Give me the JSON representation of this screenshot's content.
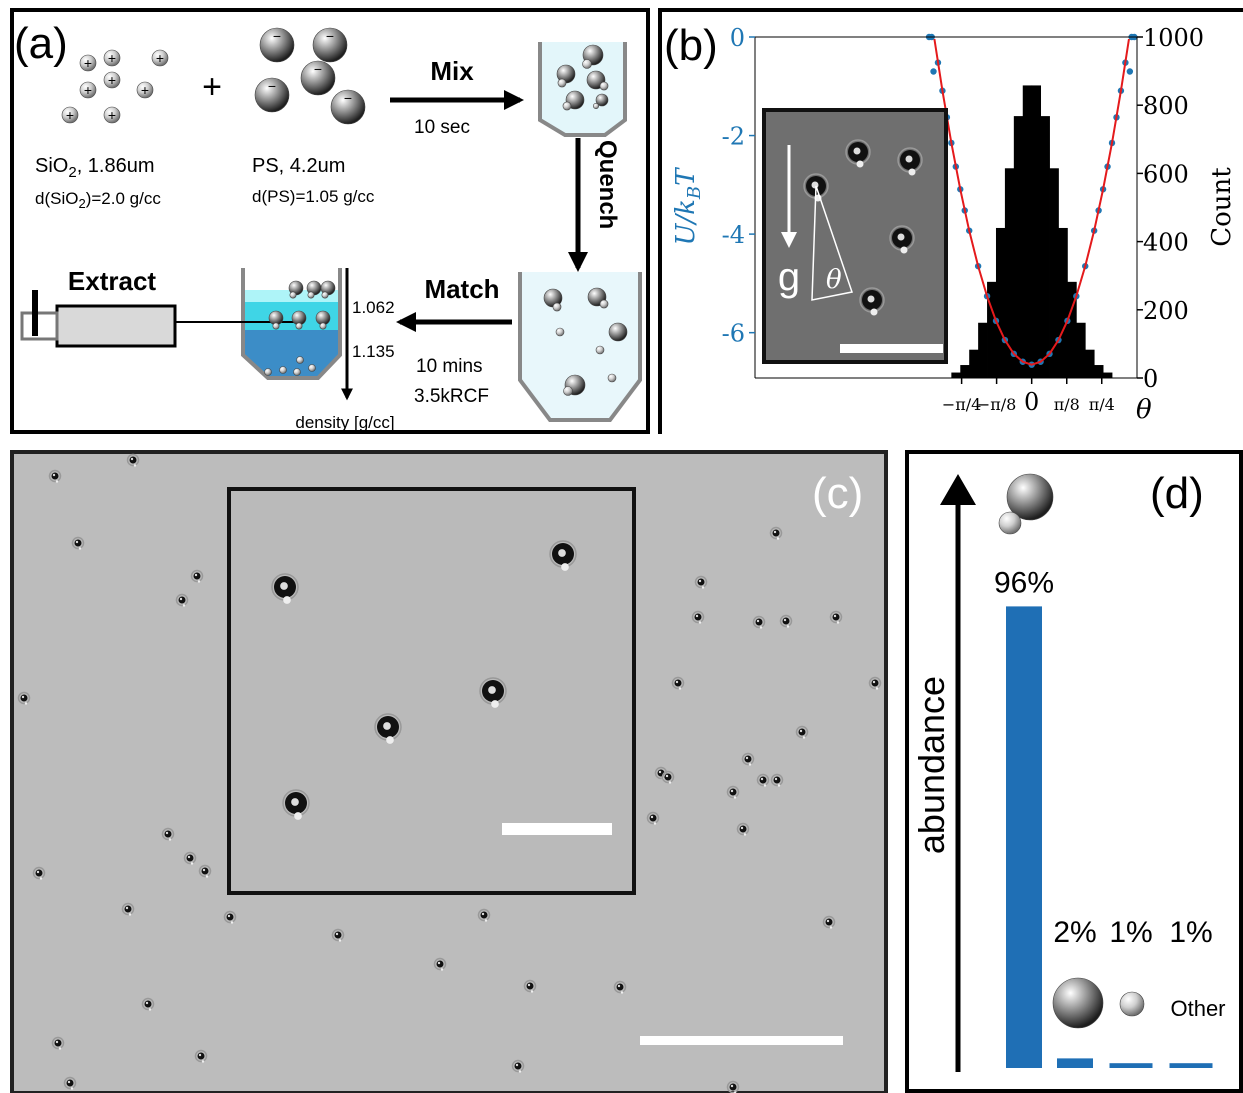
{
  "panel_a": {
    "label": "(a)",
    "plus": "+",
    "ion_plus": "+",
    "ion_minus": "−",
    "sio2_label": [
      "SiO",
      "2",
      ", 1.86um"
    ],
    "sio2_density": [
      "d(SiO",
      "2",
      ")=2.0 g/cc"
    ],
    "ps_label": "PS, 4.2um",
    "ps_density": "d(PS)=1.05 g/cc",
    "mix": "Mix",
    "mix_time": "10 sec",
    "quench": "Quench",
    "match": "Match",
    "match_time": "10 mins",
    "match_speed": "3.5kRCF",
    "extract": "Extract",
    "density_top": "1.062",
    "density_bottom": "1.135",
    "density_axis": "density [g/cc]"
  },
  "panel_b": {
    "label": "(b)",
    "inset_gravity": "g",
    "inset_angle": "θ"
  },
  "panel_c": {
    "label": "(c)"
  },
  "panel_d": {
    "label": "(d)"
  },
  "chart_data": [
    {
      "type": "combo",
      "y_label": [
        "U/k",
        "B",
        "T"
      ],
      "y2_label": "Count",
      "x_label": "θ",
      "xlim": [
        -3.1,
        1.18
      ],
      "ylim": [
        -6.92,
        0
      ],
      "y2lim": [
        0,
        1000
      ],
      "xticks": [
        {
          "value": -0.785,
          "label": "−π/4"
        },
        {
          "value": -0.393,
          "label": "−π/8"
        },
        0,
        {
          "value": 0.393,
          "label": "π/8"
        },
        {
          "value": 0.785,
          "label": "π/4"
        }
      ],
      "yticks": [
        0,
        -2,
        -4,
        -6
      ],
      "y2ticks": [
        0,
        200,
        400,
        600,
        800,
        1000
      ],
      "histogram": {
        "axis": "y2",
        "color": "#000000",
        "bins": [
          -0.9,
          -0.8,
          -0.7,
          -0.6,
          -0.5,
          -0.4,
          -0.3,
          -0.2,
          -0.1,
          0,
          0.1,
          0.2,
          0.3,
          0.4,
          0.5,
          0.6,
          0.7,
          0.8,
          0.9
        ],
        "counts": [
          16,
          38,
          83,
          162,
          282,
          440,
          615,
          768,
          858,
          858,
          768,
          615,
          440,
          282,
          162,
          83,
          38,
          16
        ]
      },
      "series": [
        {
          "style": "points",
          "color": "#1f77b4",
          "x": [
            -1.15,
            -1.12,
            -1.1,
            -1.05,
            -1.0,
            -0.95,
            -0.9,
            -0.85,
            -0.8,
            -0.75,
            -0.7,
            -0.6,
            -0.5,
            -0.4,
            -0.3,
            -0.2,
            -0.1,
            0,
            0.1,
            0.2,
            0.3,
            0.4,
            0.5,
            0.6,
            0.7,
            0.75,
            0.8,
            0.85,
            0.9,
            0.95,
            1.0,
            1.05,
            1.1,
            1.12,
            1.15
          ],
          "values": [
            0,
            0,
            -0.7,
            -0.52,
            -1.09,
            -1.63,
            -2.15,
            -2.63,
            -3.09,
            -3.52,
            -3.93,
            -4.65,
            -5.26,
            -5.76,
            -6.15,
            -6.43,
            -6.59,
            -6.65,
            -6.59,
            -6.43,
            -6.15,
            -5.76,
            -5.26,
            -4.65,
            -3.93,
            -3.52,
            -3.09,
            -2.63,
            -2.15,
            -1.63,
            -1.09,
            -0.52,
            -0.7,
            0,
            0
          ]
        },
        {
          "style": "line",
          "color": "#e41a1c",
          "x": [
            -1.09,
            -1.0,
            -0.9,
            -0.8,
            -0.7,
            -0.6,
            -0.5,
            -0.4,
            -0.3,
            -0.2,
            -0.1,
            0,
            0.1,
            0.2,
            0.3,
            0.4,
            0.5,
            0.6,
            0.7,
            0.8,
            0.9,
            1.0,
            1.09
          ],
          "values": [
            -0.04,
            -1.09,
            -2.15,
            -3.09,
            -3.93,
            -4.65,
            -5.26,
            -5.76,
            -6.15,
            -6.43,
            -6.59,
            -6.65,
            -6.59,
            -6.43,
            -6.15,
            -5.76,
            -5.26,
            -4.65,
            -3.93,
            -3.09,
            -2.15,
            -1.09,
            -0.04
          ]
        }
      ]
    },
    {
      "type": "bar",
      "y_label": "abundance",
      "categories": [
        null,
        null,
        null,
        "Other"
      ],
      "values": [
        96,
        2,
        1,
        1
      ],
      "value_labels": [
        "96%",
        "2%",
        "1%",
        "1%"
      ],
      "color": "#1f6fb5",
      "ylim": [
        0,
        120
      ]
    }
  ]
}
